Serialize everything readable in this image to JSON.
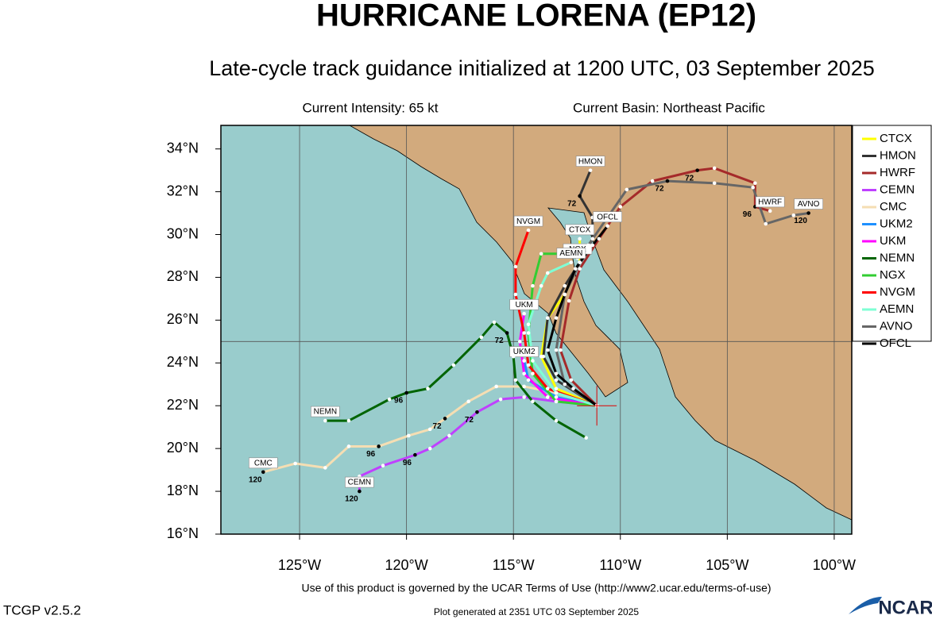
{
  "map": {
    "title": "HURRICANE LORENA (EP12)",
    "subtitle": "Late-cycle track guidance initialized at 1200 UTC, 03 September 2025",
    "intensity": "Current Intensity: 65 kt",
    "basin": "Current Basin: Northeast Pacific",
    "xlim": [
      -128.68,
      -99.18
    ],
    "ylim": [
      16,
      35.1
    ],
    "xticks": [
      {
        "value": -125,
        "label": "125°W"
      },
      {
        "value": -120,
        "label": "120°W"
      },
      {
        "value": -115,
        "label": "115°W"
      },
      {
        "value": -110,
        "label": "110°W"
      },
      {
        "value": -105,
        "label": "105°W"
      },
      {
        "value": -100,
        "label": "100°W"
      }
    ],
    "yticks": [
      {
        "value": 16,
        "label": "16°N"
      },
      {
        "value": 18,
        "label": "18°N"
      },
      {
        "value": 20,
        "label": "20°N"
      },
      {
        "value": 22,
        "label": "22°N"
      },
      {
        "value": 24,
        "label": "24°N"
      },
      {
        "value": 26,
        "label": "26°N"
      },
      {
        "value": 28,
        "label": "28°N"
      },
      {
        "value": 30,
        "label": "30°N"
      },
      {
        "value": 32,
        "label": "32°N"
      },
      {
        "value": 34,
        "label": "34°N"
      }
    ],
    "lat_grid": [
      25
    ],
    "storm": {
      "lon": -111.1,
      "lat": 22.0
    },
    "tracks": [
      {
        "name": "CTCX",
        "color": "#ffff00",
        "points": [
          {
            "lon": -111.1,
            "lat": 22.0
          },
          {
            "lon": -113.0,
            "lat": 22.8
          },
          {
            "lon": -113.7,
            "lat": 24.3
          },
          {
            "lon": -113.4,
            "lat": 26.1
          },
          {
            "lon": -112.6,
            "lat": 27.2
          },
          {
            "lon": -111.9,
            "lat": 28.7
          },
          {
            "lon": -111.9,
            "lat": 29.8
          }
        ]
      },
      {
        "name": "HMON",
        "color": "#333333",
        "points": [
          {
            "lon": -111.1,
            "lat": 22.0
          },
          {
            "lon": -113.0,
            "lat": 23.2
          },
          {
            "lon": -113.6,
            "lat": 24.3
          },
          {
            "lon": -113.4,
            "lat": 26.1
          },
          {
            "lon": -112.6,
            "lat": 27.6
          },
          {
            "lon": -111.9,
            "lat": 28.7
          },
          {
            "lon": -111.3,
            "lat": 29.8
          },
          {
            "lon": -111.3,
            "lat": 30.8
          },
          {
            "lon": -111.9,
            "lat": 31.8,
            "label": 72
          },
          {
            "lon": -111.4,
            "lat": 33.0
          }
        ]
      },
      {
        "name": "HWRF",
        "color": "#a52a2a",
        "points": [
          {
            "lon": -111.1,
            "lat": 22.0
          },
          {
            "lon": -112.3,
            "lat": 23.2
          },
          {
            "lon": -112.8,
            "lat": 24.6
          },
          {
            "lon": -112.4,
            "lat": 26.9
          },
          {
            "lon": -111.9,
            "lat": 28.4
          },
          {
            "lon": -111.0,
            "lat": 29.8
          },
          {
            "lon": -110.0,
            "lat": 31.3
          },
          {
            "lon": -108.5,
            "lat": 32.5
          },
          {
            "lon": -106.4,
            "lat": 33.0,
            "label": 72
          },
          {
            "lon": -105.6,
            "lat": 33.1
          },
          {
            "lon": -103.7,
            "lat": 32.4
          },
          {
            "lon": -103.7,
            "lat": 31.3,
            "label": 96
          },
          {
            "lon": -103.0,
            "lat": 31.1
          }
        ]
      },
      {
        "name": "CEMN",
        "color": "#bf40ff",
        "points": [
          {
            "lon": -111.1,
            "lat": 22.0
          },
          {
            "lon": -113.0,
            "lat": 22.2
          },
          {
            "lon": -114.5,
            "lat": 22.4
          },
          {
            "lon": -115.6,
            "lat": 22.3
          },
          {
            "lon": -116.7,
            "lat": 21.7,
            "label": 72
          },
          {
            "lon": -118.0,
            "lat": 20.6
          },
          {
            "lon": -118.9,
            "lat": 20.0
          },
          {
            "lon": -119.6,
            "lat": 19.7,
            "label": 96
          },
          {
            "lon": -121.1,
            "lat": 19.2
          },
          {
            "lon": -122.2,
            "lat": 18.7
          },
          {
            "lon": -122.2,
            "lat": 18.0,
            "label": 120
          }
        ]
      },
      {
        "name": "CMC",
        "color": "#f5deb3",
        "points": [
          {
            "lon": -111.1,
            "lat": 22.0
          },
          {
            "lon": -113.0,
            "lat": 22.6
          },
          {
            "lon": -114.5,
            "lat": 22.9
          },
          {
            "lon": -115.8,
            "lat": 22.9
          },
          {
            "lon": -117.1,
            "lat": 22.2
          },
          {
            "lon": -118.2,
            "lat": 21.4,
            "label": 72
          },
          {
            "lon": -118.9,
            "lat": 20.9
          },
          {
            "lon": -119.9,
            "lat": 20.6
          },
          {
            "lon": -121.3,
            "lat": 20.1,
            "label": 96
          },
          {
            "lon": -122.7,
            "lat": 20.1
          },
          {
            "lon": -123.8,
            "lat": 19.1
          },
          {
            "lon": -125.2,
            "lat": 19.3
          },
          {
            "lon": -126.7,
            "lat": 18.9,
            "label": 120
          }
        ]
      },
      {
        "name": "UKM2",
        "color": "#1e90ff",
        "points": [
          {
            "lon": -111.1,
            "lat": 22.0
          },
          {
            "lon": -113.0,
            "lat": 22.4
          },
          {
            "lon": -114.3,
            "lat": 23.2
          },
          {
            "lon": -114.5,
            "lat": 24.1
          }
        ]
      },
      {
        "name": "UKM",
        "color": "#ff00ff",
        "points": [
          {
            "lon": -111.1,
            "lat": 22.0
          },
          {
            "lon": -113.4,
            "lat": 22.4
          },
          {
            "lon": -114.5,
            "lat": 23.5
          },
          {
            "lon": -114.7,
            "lat": 25.0
          },
          {
            "lon": -114.5,
            "lat": 26.3
          }
        ]
      },
      {
        "name": "NEMN",
        "color": "#006400",
        "points": [
          {
            "lon": -111.6,
            "lat": 20.5
          },
          {
            "lon": -113.0,
            "lat": 21.3
          },
          {
            "lon": -114.1,
            "lat": 22.2
          },
          {
            "lon": -114.9,
            "lat": 23.2
          },
          {
            "lon": -115.0,
            "lat": 24.3
          },
          {
            "lon": -115.3,
            "lat": 25.4,
            "label": 72
          },
          {
            "lon": -115.9,
            "lat": 25.9
          },
          {
            "lon": -116.5,
            "lat": 25.2
          },
          {
            "lon": -117.8,
            "lat": 23.9
          },
          {
            "lon": -119.0,
            "lat": 22.8
          },
          {
            "lon": -120.0,
            "lat": 22.6,
            "label": 96
          },
          {
            "lon": -120.8,
            "lat": 22.3
          },
          {
            "lon": -122.7,
            "lat": 21.3
          },
          {
            "lon": -123.8,
            "lat": 21.3
          }
        ]
      },
      {
        "name": "NGX",
        "color": "#32cd32",
        "points": [
          {
            "lon": -111.1,
            "lat": 22.0
          },
          {
            "lon": -113.0,
            "lat": 22.2
          },
          {
            "lon": -114.1,
            "lat": 23.5
          },
          {
            "lon": -114.3,
            "lat": 25.4
          },
          {
            "lon": -114.1,
            "lat": 27.6
          },
          {
            "lon": -113.7,
            "lat": 29.1
          },
          {
            "lon": -112.6,
            "lat": 29.1
          },
          {
            "lon": -112.0,
            "lat": 28.9
          }
        ]
      },
      {
        "name": "NVGM",
        "color": "#ff0000",
        "points": [
          {
            "lon": -111.1,
            "lat": 22.0
          },
          {
            "lon": -113.4,
            "lat": 22.8
          },
          {
            "lon": -114.3,
            "lat": 23.9
          },
          {
            "lon": -114.5,
            "lat": 25.4
          },
          {
            "lon": -114.9,
            "lat": 27.2
          },
          {
            "lon": -114.9,
            "lat": 28.5
          },
          {
            "lon": -114.3,
            "lat": 30.2
          }
        ]
      },
      {
        "name": "AEMN",
        "color": "#7fffd4",
        "points": [
          {
            "lon": -111.1,
            "lat": 22.0
          },
          {
            "lon": -113.0,
            "lat": 22.6
          },
          {
            "lon": -114.1,
            "lat": 24.1
          },
          {
            "lon": -114.3,
            "lat": 25.8
          },
          {
            "lon": -113.7,
            "lat": 27.6
          },
          {
            "lon": -113.4,
            "lat": 28.2
          },
          {
            "lon": -112.3,
            "lat": 28.7
          }
        ]
      },
      {
        "name": "AVNO",
        "color": "#666666",
        "points": [
          {
            "lon": -111.1,
            "lat": 22.0
          },
          {
            "lon": -112.6,
            "lat": 23.0
          },
          {
            "lon": -113.0,
            "lat": 24.6
          },
          {
            "lon": -112.6,
            "lat": 27.2
          },
          {
            "lon": -111.5,
            "lat": 29.5
          },
          {
            "lon": -109.7,
            "lat": 32.1
          },
          {
            "lon": -107.8,
            "lat": 32.5,
            "label": 72
          },
          {
            "lon": -105.6,
            "lat": 32.4
          },
          {
            "lon": -103.8,
            "lat": 32.2
          },
          {
            "lon": -103.2,
            "lat": 30.5
          },
          {
            "lon": -101.9,
            "lat": 30.9
          },
          {
            "lon": -101.2,
            "lat": 31.0,
            "label": 120
          }
        ]
      },
      {
        "name": "OFCL",
        "color": "#000000",
        "points": [
          {
            "lon": -111.1,
            "lat": 22.0
          },
          {
            "lon": -112.2,
            "lat": 22.8
          },
          {
            "lon": -113.0,
            "lat": 23.5
          },
          {
            "lon": -113.4,
            "lat": 24.6
          },
          {
            "lon": -113.0,
            "lat": 26.1
          },
          {
            "lon": -112.6,
            "lat": 27.2
          },
          {
            "lon": -112.1,
            "lat": 28.4
          },
          {
            "lon": -111.3,
            "lat": 29.5
          },
          {
            "lon": -110.6,
            "lat": 30.4
          }
        ]
      }
    ],
    "terms": "Use of this product is governed by the UCAR Terms of Use (http://www2.ucar.edu/terms-of-use)",
    "version": "TCGP v2.5.2",
    "generated": "Plot generated at 2351 UTC   03 September 2025",
    "logo": "NCAR"
  }
}
